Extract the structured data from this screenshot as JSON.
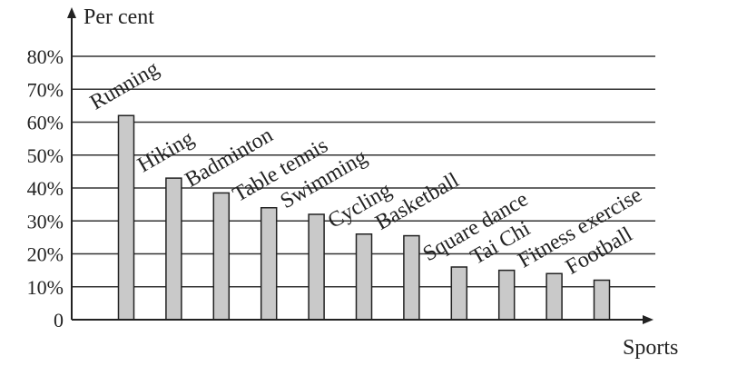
{
  "chart_data": {
    "type": "bar",
    "ylabel": "Per cent",
    "xlabel": "Sports",
    "y_tick_labels": [
      "0",
      "10%",
      "20%",
      "30%",
      "40%",
      "50%",
      "60%",
      "70%",
      "80%"
    ],
    "ylim": [
      0,
      80
    ],
    "grid": true,
    "categories": [
      "Running",
      "Hiking",
      "Badminton",
      "Table tennis",
      "Swimming",
      "Cycling",
      "Basketball",
      "Square dance",
      "Tai Chi",
      "Fitness exercise",
      "Football"
    ],
    "values": [
      62,
      43,
      38.5,
      34,
      32,
      26,
      25.5,
      16,
      15,
      14,
      12
    ],
    "colors": {
      "bar_fill": "#c9c9c9",
      "bar_stroke": "#222222",
      "grid": "#333333"
    }
  }
}
